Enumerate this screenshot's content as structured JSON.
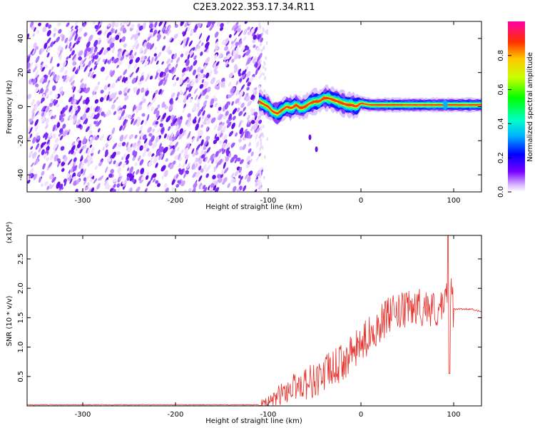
{
  "title": "C2E3.2022.353.17.34.R11",
  "chart_data": [
    {
      "type": "heatmap",
      "xlabel": "Height of straight line (km)",
      "ylabel": "Frequency (Hz)",
      "xlim": [
        -360,
        130
      ],
      "ylim": [
        -50,
        50
      ],
      "x_ticks": [
        -300,
        -200,
        -100,
        0,
        100
      ],
      "y_ticks": [
        -40,
        -20,
        0,
        20,
        40
      ],
      "colorbar": {
        "label": "Normalized spectral amplitude",
        "range": [
          0,
          1
        ],
        "ticks": [
          "0.0",
          "0.2",
          "0.4",
          "0.6",
          "0.8"
        ]
      },
      "noise_region_x": [
        -360,
        -110
      ],
      "ridge": {
        "x": [
          -110,
          -100,
          -95,
          -90,
          -85,
          -80,
          -75,
          -70,
          -65,
          -60,
          -55,
          -50,
          -45,
          -40,
          -35,
          -30,
          -25,
          -20,
          -15,
          -10,
          -5,
          0,
          10,
          20,
          40,
          60,
          80,
          90,
          95,
          100,
          130
        ],
        "freq": [
          3,
          0,
          -3,
          -4,
          -2,
          0,
          -1,
          1,
          -1,
          0,
          2,
          3,
          3,
          5,
          5,
          4,
          3,
          2,
          1,
          1,
          0,
          2,
          1,
          1,
          1,
          1,
          1,
          1,
          1,
          1,
          1
        ]
      },
      "grid": false,
      "legend": "colorbar right"
    },
    {
      "type": "line",
      "xlabel": "Height of straight line (km)",
      "ylabel": "SNR (10 * v/v)",
      "y_multiplier": "(x10⁴)",
      "xlim": [
        -360,
        130
      ],
      "ylim": [
        0,
        2.9
      ],
      "x_ticks": [
        -300,
        -200,
        -100,
        0,
        100
      ],
      "y_ticks": [
        0.5,
        1.0,
        1.5,
        2.0,
        2.5
      ],
      "series": [
        {
          "color": "#e8302a",
          "x": [
            -360,
            -300,
            -200,
            -110,
            -100,
            -90,
            -80,
            -70,
            -60,
            -50,
            -40,
            -30,
            -20,
            -10,
            0,
            10,
            20,
            30,
            40,
            50,
            60,
            70,
            80,
            90,
            95,
            100,
            110,
            120,
            130
          ],
          "y": [
            0.02,
            0.02,
            0.02,
            0.02,
            0.05,
            0.2,
            0.3,
            0.4,
            0.45,
            0.5,
            0.6,
            0.7,
            0.8,
            0.95,
            1.1,
            1.3,
            1.45,
            1.6,
            1.65,
            1.7,
            1.75,
            1.75,
            1.7,
            1.7,
            2.3,
            1.65,
            1.65,
            1.65,
            1.6
          ]
        }
      ],
      "grid": false
    }
  ]
}
